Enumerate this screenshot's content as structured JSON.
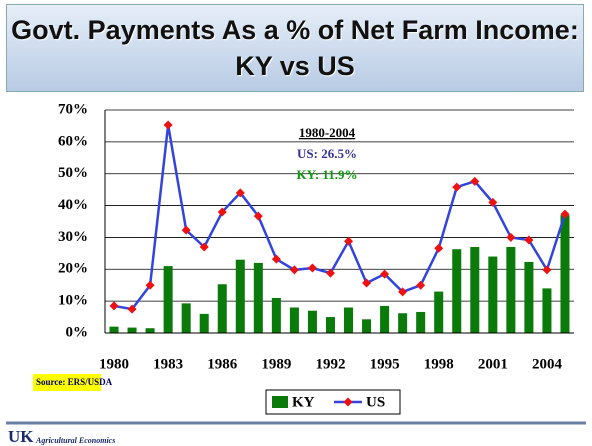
{
  "chart_data": {
    "type": "combo",
    "title": "Govt. Payments As a % of Net Farm Income:  KY vs US",
    "categories": [
      "1980",
      null,
      null,
      "1983",
      null,
      null,
      "1986",
      null,
      null,
      "1989",
      null,
      null,
      "1992",
      null,
      null,
      "1995",
      null,
      null,
      "1998",
      null,
      null,
      "2001",
      null,
      null,
      "2004",
      null
    ],
    "series": [
      {
        "name": "KY",
        "type": "bar",
        "color": "#0a7a0a",
        "values": [
          2,
          1.7,
          1.5,
          21,
          9.3,
          6,
          15.3,
          23,
          22,
          11,
          8,
          7,
          5,
          8,
          4.3,
          8.5,
          6.2,
          6.6,
          13,
          26.3,
          27,
          24,
          27,
          22.3,
          14,
          37
        ]
      },
      {
        "name": "US",
        "type": "line",
        "color": "#3344dd",
        "marker_color": "#ee1111",
        "values": [
          8.5,
          7.5,
          15,
          65.3,
          32.3,
          27,
          38,
          44,
          36.7,
          23.2,
          19.8,
          20.4,
          18.8,
          28.8,
          15.7,
          18.5,
          12.9,
          15,
          26.6,
          45.8,
          47.6,
          41,
          30,
          29.2,
          19.8,
          37.3
        ]
      }
    ],
    "ylim": [
      0,
      70
    ],
    "yticks": [
      {
        "value": 0,
        "label": "0%"
      },
      {
        "value": 10,
        "label": "10%"
      },
      {
        "value": 20,
        "label": "20%"
      },
      {
        "value": 30,
        "label": "30%"
      },
      {
        "value": 40,
        "label": "40%"
      },
      {
        "value": 50,
        "label": "50%"
      },
      {
        "value": 60,
        "label": "60%"
      },
      {
        "value": 70,
        "label": "70%"
      }
    ],
    "grid": true,
    "annotations": [
      {
        "text": "1980-2004",
        "color": "#000000"
      },
      {
        "text": "US:  26.5%",
        "color": "#333399"
      },
      {
        "text": "KY: 11.9%",
        "color": "#119911"
      }
    ],
    "source": "Source: ERS/USDA"
  },
  "footer": {
    "logo": "UK",
    "dept": "Agricultural Economics"
  }
}
